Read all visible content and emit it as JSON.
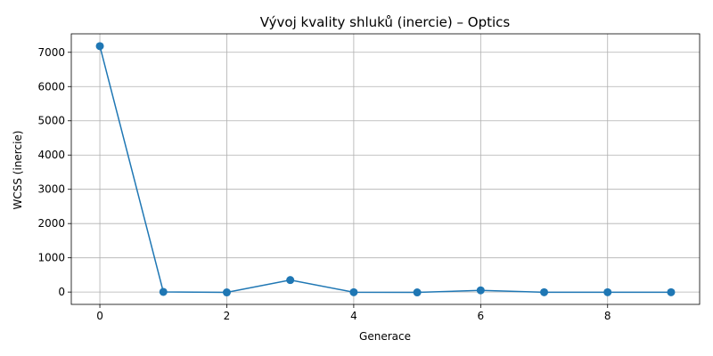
{
  "chart_data": {
    "type": "line",
    "title": "Vývoj kvality shluků (inercie) – Optics",
    "xlabel": "Generace",
    "ylabel": "WCSS (inercie)",
    "x": [
      0,
      1,
      2,
      3,
      4,
      5,
      6,
      7,
      8,
      9
    ],
    "series": [
      {
        "values": [
          7180,
          5,
          -10,
          350,
          -5,
          -10,
          50,
          -5,
          -5,
          -5
        ]
      }
    ],
    "xlim": [
      -0.45,
      9.45
    ],
    "ylim": [
      -360,
      7540
    ],
    "xticks": [
      0,
      2,
      4,
      6,
      8
    ],
    "yticks": [
      0,
      1000,
      2000,
      3000,
      4000,
      5000,
      6000,
      7000
    ],
    "grid": true,
    "legend": "none",
    "colors": {
      "line": "#1f77b4",
      "grid": "#b0b0b0",
      "axis": "#000000"
    }
  }
}
